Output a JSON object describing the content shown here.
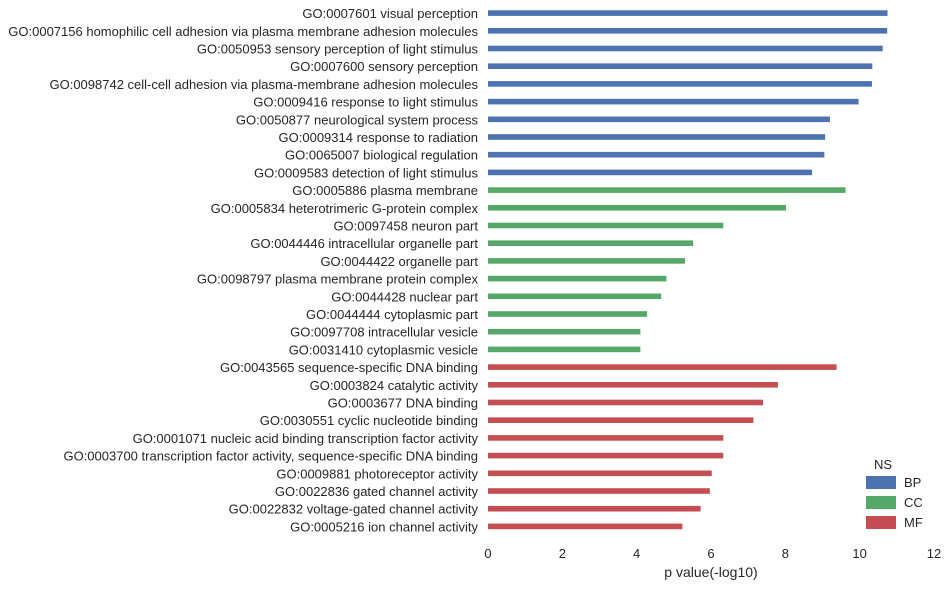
{
  "chart_data": {
    "type": "bar",
    "orientation": "horizontal",
    "title": "",
    "xlabel": "p value(-log10)",
    "ylabel": "",
    "xlim": [
      0,
      12
    ],
    "xticks": [
      "0",
      "2",
      "4",
      "6",
      "8",
      "10",
      "12"
    ],
    "grid": false,
    "legend": {
      "title": "NS",
      "placement": "bottom-right",
      "entries": [
        {
          "name": "BP",
          "color": "#4c72b0"
        },
        {
          "name": "CC",
          "color": "#55a868"
        },
        {
          "name": "MF",
          "color": "#c44e52"
        }
      ]
    },
    "categories": [
      "GO:0007601 visual perception",
      "GO:0007156 homophilic cell adhesion via plasma membrane adhesion molecules",
      "GO:0050953 sensory perception of light stimulus",
      "GO:0007600 sensory perception",
      "GO:0098742 cell-cell adhesion via plasma-membrane adhesion molecules",
      "GO:0009416 response to light stimulus",
      "GO:0050877 neurological system process",
      "GO:0009314 response to radiation",
      "GO:0065007 biological regulation",
      "GO:0009583 detection of light stimulus",
      "GO:0005886 plasma membrane",
      "GO:0005834 heterotrimeric G-protein complex",
      "GO:0097458 neuron part",
      "GO:0044446 intracellular organelle part",
      "GO:0044422 organelle part",
      "GO:0098797 plasma membrane protein complex",
      "GO:0044428 nuclear part",
      "GO:0044444 cytoplasmic part",
      "GO:0097708 intracellular vesicle",
      "GO:0031410 cytoplasmic vesicle",
      "GO:0043565 sequence-specific DNA binding",
      "GO:0003824 catalytic activity",
      "GO:0003677 DNA binding",
      "GO:0030551 cyclic nucleotide binding",
      "GO:0001071 nucleic acid binding transcription factor activity",
      "GO:0003700 transcription factor activity, sequence-specific DNA binding",
      "GO:0009881 photoreceptor activity",
      "GO:0022836 gated channel activity",
      "GO:0022832 voltage-gated channel activity",
      "GO:0005216 ion channel activity"
    ],
    "series": [
      {
        "name": "BP",
        "color": "#4c72b0",
        "values": [
          10.75,
          10.74,
          10.62,
          10.34,
          10.33,
          9.97,
          9.2,
          9.07,
          9.05,
          8.72,
          null,
          null,
          null,
          null,
          null,
          null,
          null,
          null,
          null,
          null,
          null,
          null,
          null,
          null,
          null,
          null,
          null,
          null,
          null,
          null
        ]
      },
      {
        "name": "CC",
        "color": "#55a868",
        "values": [
          null,
          null,
          null,
          null,
          null,
          null,
          null,
          null,
          null,
          null,
          9.62,
          8.02,
          6.33,
          5.52,
          5.3,
          4.8,
          4.66,
          4.28,
          4.1,
          4.1,
          null,
          null,
          null,
          null,
          null,
          null,
          null,
          null,
          null,
          null
        ]
      },
      {
        "name": "MF",
        "color": "#c44e52",
        "values": [
          null,
          null,
          null,
          null,
          null,
          null,
          null,
          null,
          null,
          null,
          null,
          null,
          null,
          null,
          null,
          null,
          null,
          null,
          null,
          null,
          9.38,
          7.8,
          7.4,
          7.14,
          6.33,
          6.33,
          6.02,
          5.97,
          5.72,
          5.23
        ]
      }
    ]
  }
}
